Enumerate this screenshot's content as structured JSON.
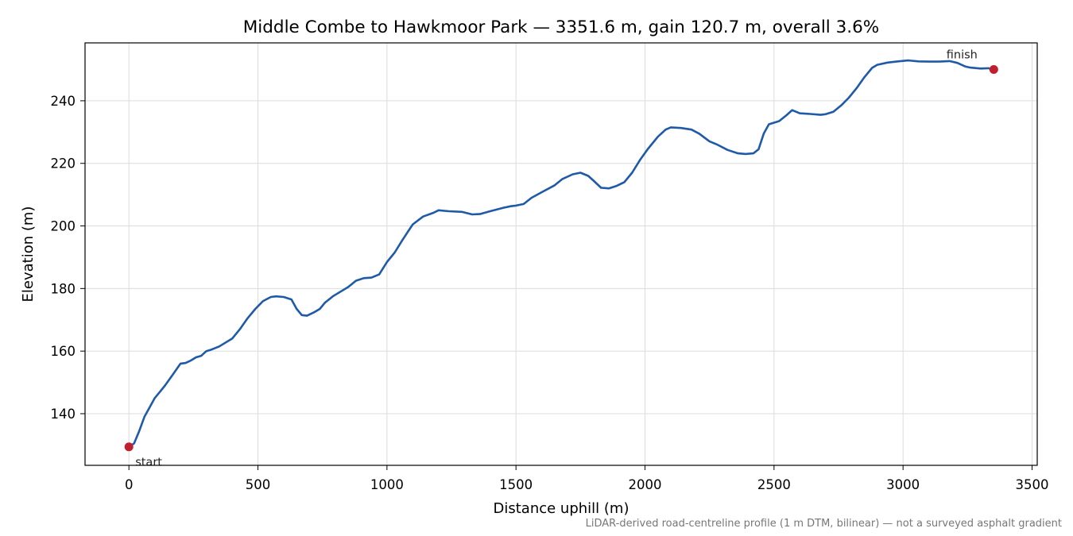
{
  "chart_data": {
    "type": "line",
    "title": "Middle Combe to Hawkmoor Park — 3351.6 m, gain 120.7 m, overall 3.6%",
    "xlabel": "Distance uphill (m)",
    "ylabel": "Elevation (m)",
    "xlim": [
      -170,
      3520
    ],
    "ylim": [
      123.5,
      258.5
    ],
    "xticks": [
      0,
      500,
      1000,
      1500,
      2000,
      2500,
      3000,
      3500
    ],
    "yticks": [
      140,
      160,
      180,
      200,
      220,
      240
    ],
    "grid": true,
    "line_color": "#1f5aa8",
    "marker_color": "#c0202e",
    "series": [
      {
        "x": [
          0,
          20,
          40,
          60,
          80,
          100,
          120,
          140,
          170,
          200,
          220,
          240,
          260,
          280,
          300,
          320,
          350,
          380,
          400,
          430,
          460,
          490,
          520,
          550,
          570,
          600,
          630,
          650,
          670,
          690,
          720,
          740,
          760,
          790,
          820,
          850,
          880,
          910,
          940,
          970,
          1000,
          1030,
          1060,
          1080,
          1100,
          1140,
          1180,
          1200,
          1240,
          1290,
          1330,
          1360,
          1400,
          1450,
          1480,
          1500,
          1530,
          1560,
          1600,
          1650,
          1680,
          1720,
          1750,
          1780,
          1800,
          1830,
          1860,
          1890,
          1920,
          1950,
          1980,
          2010,
          2050,
          2080,
          2100,
          2140,
          2180,
          2210,
          2250,
          2280,
          2320,
          2360,
          2390,
          2420,
          2440,
          2460,
          2480,
          2520,
          2550,
          2570,
          2600,
          2640,
          2680,
          2700,
          2730,
          2760,
          2790,
          2820,
          2850,
          2880,
          2900,
          2940,
          2980,
          3020,
          3060,
          3100,
          3140,
          3180,
          3210,
          3240,
          3260,
          3300,
          3330,
          3351.6
        ],
        "y": [
          129.4,
          130.5,
          134.5,
          139.0,
          142.0,
          145.0,
          147.0,
          149.0,
          152.5,
          156.0,
          156.2,
          157.0,
          158.0,
          158.5,
          160.0,
          160.5,
          161.5,
          163.0,
          164.0,
          167.0,
          170.5,
          173.5,
          176.0,
          177.3,
          177.5,
          177.3,
          176.5,
          173.5,
          171.5,
          171.3,
          172.5,
          173.5,
          175.5,
          177.5,
          179.0,
          180.5,
          182.5,
          183.3,
          183.5,
          184.5,
          188.5,
          191.5,
          195.5,
          198.0,
          200.5,
          203.0,
          204.2,
          205.0,
          204.7,
          204.5,
          203.7,
          203.8,
          204.7,
          205.8,
          206.3,
          206.5,
          207.0,
          209.0,
          210.8,
          213.0,
          215.0,
          216.5,
          217.0,
          216.0,
          214.5,
          212.2,
          212.0,
          212.8,
          214.0,
          217.0,
          221.0,
          224.5,
          228.5,
          230.8,
          231.5,
          231.3,
          230.8,
          229.5,
          227.0,
          226.0,
          224.3,
          223.2,
          223.0,
          223.2,
          224.5,
          229.5,
          232.5,
          233.5,
          235.5,
          237.0,
          236.0,
          235.8,
          235.5,
          235.7,
          236.5,
          238.5,
          241.0,
          244.0,
          247.5,
          250.5,
          251.5,
          252.2,
          252.6,
          252.9,
          252.6,
          252.5,
          252.5,
          252.7,
          252.1,
          251.0,
          250.6,
          250.3,
          250.4,
          250.0
        ]
      }
    ],
    "annotations": [
      {
        "text": "start",
        "x": 0,
        "y": 129.4
      },
      {
        "text": "finish",
        "x": 3351.6,
        "y": 250.0
      }
    ]
  },
  "footnote": "LiDAR-derived road-centreline profile (1 m DTM, bilinear) — not a surveyed asphalt gradient"
}
